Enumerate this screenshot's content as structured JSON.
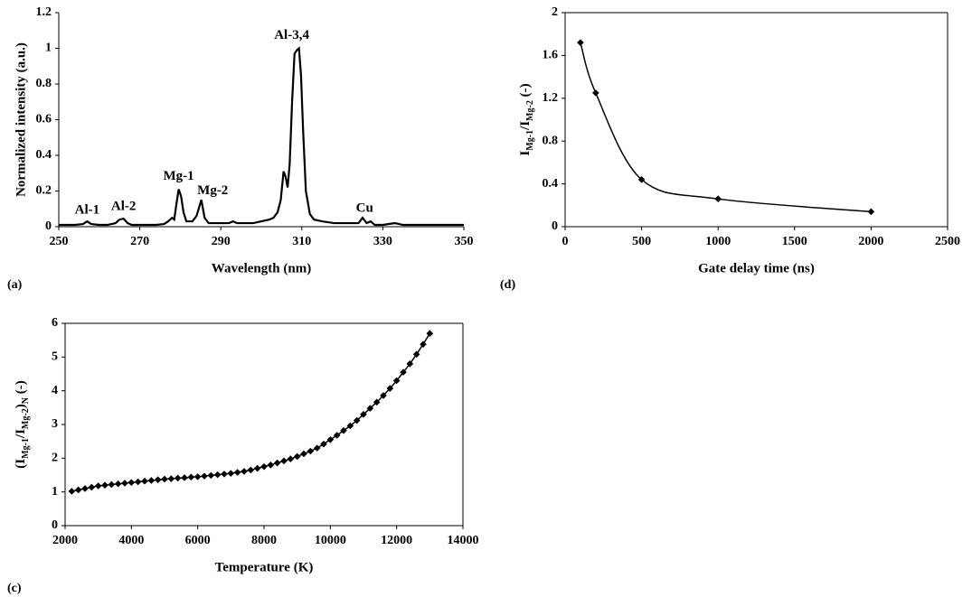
{
  "chart_data": [
    {
      "type": "line",
      "panel_label": "(a)",
      "x_label": "Wavelength (nm)",
      "y_label": "Normalized intensity (a.u.)",
      "x": [
        250,
        252,
        254,
        256,
        257,
        258,
        260,
        262,
        264,
        265,
        266,
        267,
        268,
        270,
        272,
        274,
        276,
        277,
        278,
        278.5,
        279,
        279.6,
        280.2,
        280.8,
        281.5,
        283,
        284,
        285.2,
        286,
        287,
        290,
        292,
        293,
        294,
        296,
        298,
        300,
        302,
        303,
        304,
        304.8,
        305.5,
        306,
        306.5,
        307,
        307.6,
        308.2,
        308.8,
        309.3,
        309.8,
        310.3,
        311,
        312,
        313,
        315,
        318,
        322,
        324,
        325,
        326,
        327,
        328,
        330,
        333,
        335,
        340,
        345,
        350
      ],
      "series": [
        {
          "color": "#000000",
          "values": [
            0.01,
            0.01,
            0.01,
            0.015,
            0.03,
            0.015,
            0.01,
            0.01,
            0.02,
            0.04,
            0.045,
            0.02,
            0.01,
            0.01,
            0.01,
            0.01,
            0.015,
            0.03,
            0.05,
            0.04,
            0.12,
            0.21,
            0.17,
            0.08,
            0.03,
            0.03,
            0.06,
            0.15,
            0.05,
            0.02,
            0.02,
            0.02,
            0.03,
            0.02,
            0.02,
            0.02,
            0.03,
            0.04,
            0.05,
            0.08,
            0.15,
            0.31,
            0.28,
            0.22,
            0.35,
            0.7,
            0.97,
            0.99,
            1.0,
            0.85,
            0.55,
            0.2,
            0.07,
            0.04,
            0.03,
            0.02,
            0.02,
            0.02,
            0.05,
            0.02,
            0.03,
            0.01,
            0.01,
            0.02,
            0.01,
            0.01,
            0.01,
            0.01
          ]
        }
      ],
      "annotations": [
        "Al-1",
        "Al-2",
        "Mg-1",
        "Mg-2",
        "Al-3,4",
        "Cu"
      ],
      "xlim": [
        250,
        350
      ],
      "xticks": [
        250,
        270,
        290,
        310,
        330,
        350
      ],
      "ylim": [
        0,
        1.2
      ],
      "yticks": [
        0,
        0.2,
        0.4,
        0.6,
        0.8,
        1,
        1.2
      ],
      "grid": false
    },
    {
      "type": "line",
      "panel_label": "(d)",
      "x_label": "Gate delay time (ns)",
      "y_label_parts": [
        "I",
        "Mg-1",
        "/I",
        "Mg-2",
        " (-)"
      ],
      "x": [
        100,
        200,
        500,
        1000,
        2000
      ],
      "series": [
        {
          "color": "#000000",
          "values": [
            1.72,
            1.25,
            0.44,
            0.26,
            0.14
          ]
        }
      ],
      "marker": "diamond",
      "smooth": true,
      "xlim": [
        0,
        2500
      ],
      "xticks": [
        0,
        500,
        1000,
        1500,
        2000,
        2500
      ],
      "ylim": [
        0,
        2
      ],
      "yticks": [
        0,
        0.4,
        0.8,
        1.2,
        1.6,
        2
      ],
      "grid": false
    },
    {
      "type": "line",
      "panel_label": "(c)",
      "x_label": "Temperature (K)",
      "y_label_parts": [
        "(I",
        "Mg-1",
        "/I",
        "Mg-2",
        ")",
        "N",
        " (-)"
      ],
      "x": [
        2200,
        2400,
        2600,
        2800,
        3000,
        3200,
        3400,
        3600,
        3800,
        4000,
        4200,
        4400,
        4600,
        4800,
        5000,
        5200,
        5400,
        5600,
        5800,
        6000,
        6200,
        6400,
        6600,
        6800,
        7000,
        7200,
        7400,
        7600,
        7800,
        8000,
        8200,
        8400,
        8600,
        8800,
        9000,
        9200,
        9400,
        9600,
        9800,
        10000,
        10200,
        10400,
        10600,
        10800,
        11000,
        11200,
        11400,
        11600,
        11800,
        12000,
        12200,
        12400,
        12600,
        12800,
        13000
      ],
      "series": [
        {
          "color": "#000000",
          "values": [
            1.02,
            1.06,
            1.1,
            1.14,
            1.18,
            1.2,
            1.22,
            1.24,
            1.26,
            1.28,
            1.3,
            1.32,
            1.34,
            1.36,
            1.38,
            1.39,
            1.41,
            1.42,
            1.44,
            1.45,
            1.47,
            1.49,
            1.51,
            1.53,
            1.55,
            1.58,
            1.61,
            1.65,
            1.7,
            1.75,
            1.8,
            1.86,
            1.92,
            1.98,
            2.05,
            2.13,
            2.21,
            2.3,
            2.42,
            2.55,
            2.68,
            2.82,
            2.96,
            3.12,
            3.3,
            3.48,
            3.66,
            3.86,
            4.07,
            4.3,
            4.55,
            4.8,
            5.08,
            5.38,
            5.7
          ]
        }
      ],
      "marker": "diamond",
      "smooth": false,
      "xlim": [
        2000,
        14000
      ],
      "xticks": [
        2000,
        4000,
        6000,
        8000,
        10000,
        12000,
        14000
      ],
      "ylim": [
        0,
        6
      ],
      "yticks": [
        0,
        1,
        2,
        3,
        4,
        5,
        6
      ],
      "grid": false
    }
  ]
}
